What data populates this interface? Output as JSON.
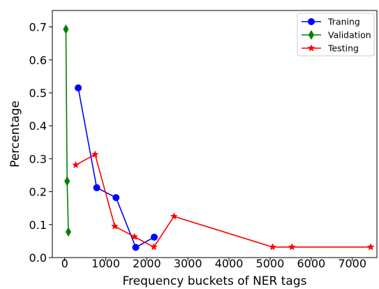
{
  "chart_data": {
    "type": "line",
    "xlabel": "Frequency buckets of NER tags",
    "ylabel": "Percentage",
    "xlim": [
      -300,
      7600
    ],
    "ylim": [
      0.0,
      0.75
    ],
    "x_ticks": [
      0,
      1000,
      2000,
      3000,
      4000,
      5000,
      6000,
      7000
    ],
    "y_ticks": [
      0.0,
      0.1,
      0.2,
      0.3,
      0.4,
      0.5,
      0.6,
      0.7
    ],
    "x_tick_labels": [
      "0",
      "1000",
      "2000",
      "3000",
      "4000",
      "5000",
      "6000",
      "7000"
    ],
    "y_tick_labels": [
      "0.0",
      "0.1",
      "0.2",
      "0.3",
      "0.4",
      "0.5",
      "0.6",
      "0.7"
    ],
    "grid": false,
    "legend_position": "top-right",
    "series": [
      {
        "name": "Traning",
        "color": "#0000ff",
        "marker": "circle",
        "x": [
          330,
          780,
          1250,
          1730,
          2180
        ],
        "y": [
          0.515,
          0.212,
          0.182,
          0.031,
          0.062
        ]
      },
      {
        "name": "Validation",
        "color": "#008000",
        "marker": "diamond",
        "x": [
          30,
          60,
          90
        ],
        "y": [
          0.693,
          0.232,
          0.078
        ]
      },
      {
        "name": "Testing",
        "color": "#ff0000",
        "marker": "star",
        "x": [
          270,
          740,
          1220,
          1700,
          2170,
          2660,
          5060,
          5530,
          7450
        ],
        "y": [
          0.281,
          0.313,
          0.095,
          0.063,
          0.032,
          0.125,
          0.032,
          0.032,
          0.032
        ]
      }
    ]
  }
}
